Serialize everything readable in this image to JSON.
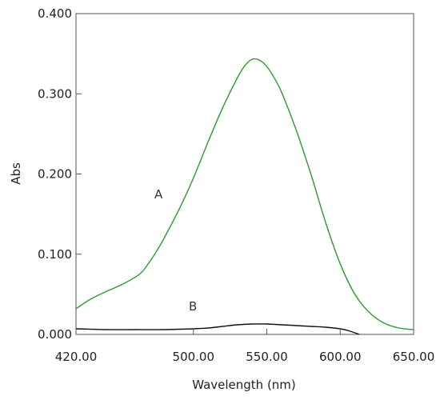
{
  "chart_data": {
    "type": "line",
    "title": "",
    "xlabel": "Wavelength (nm)",
    "ylabel": "Abs",
    "xlim": [
      420,
      650
    ],
    "ylim": [
      0,
      0.4
    ],
    "x_tick_values": [
      420,
      500,
      550,
      600,
      650
    ],
    "x_tick_labels": [
      "420.00",
      "500.00",
      "550.00",
      "600.00",
      "650.00"
    ],
    "y_tick_values": [
      0,
      0.1,
      0.2,
      0.3,
      0.4
    ],
    "y_tick_labels": [
      "0.000",
      "0.100",
      "0.200",
      "0.300",
      "0.400"
    ],
    "grid": false,
    "legend": "none",
    "series": [
      {
        "name": "A",
        "color": "#2e9a2e",
        "x": [
          420,
          430,
          440,
          450,
          460,
          465,
          470,
          475,
          480,
          490,
          500,
          510,
          520,
          530,
          535,
          540,
          545,
          550,
          555,
          560,
          570,
          580,
          590,
          600,
          610,
          620,
          630,
          640,
          650
        ],
        "y": [
          0.032,
          0.044,
          0.053,
          0.061,
          0.071,
          0.078,
          0.09,
          0.104,
          0.12,
          0.155,
          0.195,
          0.24,
          0.283,
          0.32,
          0.335,
          0.343,
          0.342,
          0.334,
          0.32,
          0.302,
          0.255,
          0.2,
          0.14,
          0.088,
          0.05,
          0.027,
          0.014,
          0.008,
          0.006
        ]
      },
      {
        "name": "B",
        "color": "#111111",
        "x": [
          420,
          440,
          460,
          480,
          500,
          510,
          520,
          530,
          540,
          545,
          550,
          560,
          570,
          580,
          590,
          600,
          605,
          610,
          613
        ],
        "y": [
          0.007,
          0.006,
          0.006,
          0.006,
          0.007,
          0.008,
          0.01,
          0.012,
          0.013,
          0.013,
          0.013,
          0.012,
          0.011,
          0.01,
          0.009,
          0.007,
          0.005,
          0.002,
          0.0
        ]
      }
    ]
  }
}
